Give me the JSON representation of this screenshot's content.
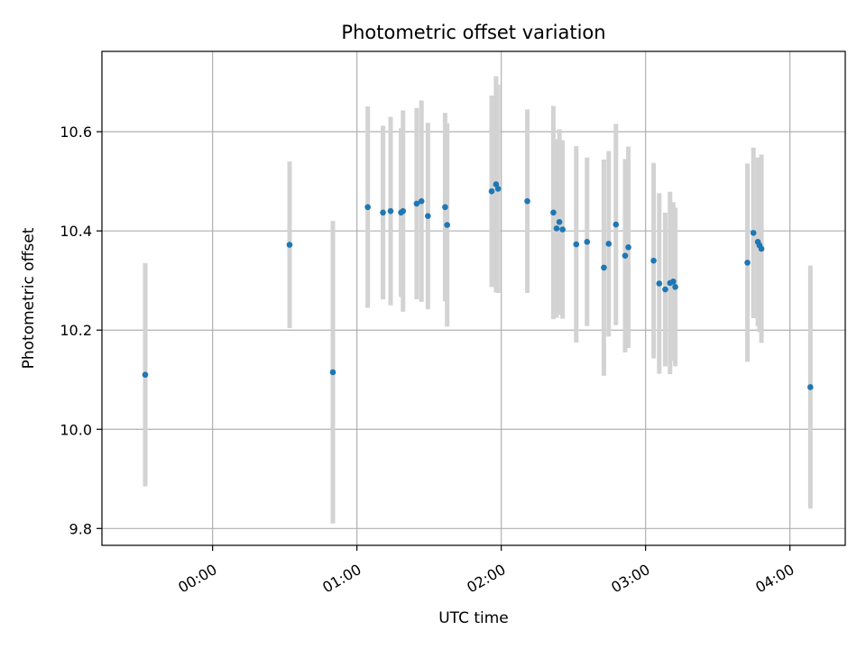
{
  "chart_data": {
    "type": "scatter",
    "title": "Photometric offset variation",
    "xlabel": "UTC time",
    "ylabel": "Photometric offset",
    "x_is_time": true,
    "xlim": [
      "23:14",
      "04:23"
    ],
    "ylim": [
      9.766,
      10.762
    ],
    "x_ticks": [
      "00:00",
      "01:00",
      "02:00",
      "03:00",
      "04:00"
    ],
    "y_ticks": [
      9.8,
      10.0,
      10.2,
      10.4,
      10.6
    ],
    "grid": true,
    "colors": {
      "point": "#1f77b4",
      "error_bar": "#d3d3d3",
      "grid": "#b0b0b0"
    },
    "series": [
      {
        "points": [
          {
            "x": "23:32:00",
            "y": 10.11,
            "err": 0.225
          },
          {
            "x": "00:32:00",
            "y": 10.372,
            "err": 0.168
          },
          {
            "x": "00:50:00",
            "y": 10.115,
            "err": 0.305
          },
          {
            "x": "01:04:30",
            "y": 10.448,
            "err": 0.203
          },
          {
            "x": "01:10:50",
            "y": 10.437,
            "err": 0.175
          },
          {
            "x": "01:14:00",
            "y": 10.44,
            "err": 0.19
          },
          {
            "x": "01:18:20",
            "y": 10.437,
            "err": 0.17
          },
          {
            "x": "01:19:10",
            "y": 10.44,
            "err": 0.203
          },
          {
            "x": "01:24:50",
            "y": 10.455,
            "err": 0.193
          },
          {
            "x": "01:26:50",
            "y": 10.46,
            "err": 0.203
          },
          {
            "x": "01:29:30",
            "y": 10.43,
            "err": 0.188
          },
          {
            "x": "01:36:40",
            "y": 10.448,
            "err": 0.19
          },
          {
            "x": "01:37:30",
            "y": 10.412,
            "err": 0.205
          },
          {
            "x": "01:56:00",
            "y": 10.48,
            "err": 0.193
          },
          {
            "x": "01:57:50",
            "y": 10.494,
            "err": 0.218
          },
          {
            "x": "01:58:40",
            "y": 10.485,
            "err": 0.21
          },
          {
            "x": "02:10:50",
            "y": 10.46,
            "err": 0.185
          },
          {
            "x": "02:21:40",
            "y": 10.437,
            "err": 0.215
          },
          {
            "x": "02:23:00",
            "y": 10.405,
            "err": 0.18
          },
          {
            "x": "02:24:10",
            "y": 10.418,
            "err": 0.187
          },
          {
            "x": "02:25:30",
            "y": 10.403,
            "err": 0.18
          },
          {
            "x": "02:31:10",
            "y": 10.373,
            "err": 0.198
          },
          {
            "x": "02:35:40",
            "y": 10.378,
            "err": 0.17
          },
          {
            "x": "02:42:40",
            "y": 10.326,
            "err": 0.218
          },
          {
            "x": "02:44:40",
            "y": 10.374,
            "err": 0.187
          },
          {
            "x": "02:47:40",
            "y": 10.413,
            "err": 0.203
          },
          {
            "x": "02:51:30",
            "y": 10.35,
            "err": 0.195
          },
          {
            "x": "02:52:50",
            "y": 10.367,
            "err": 0.203
          },
          {
            "x": "03:03:20",
            "y": 10.34,
            "err": 0.197
          },
          {
            "x": "03:05:40",
            "y": 10.294,
            "err": 0.182
          },
          {
            "x": "03:08:10",
            "y": 10.282,
            "err": 0.155
          },
          {
            "x": "03:10:10",
            "y": 10.295,
            "err": 0.184
          },
          {
            "x": "03:11:30",
            "y": 10.298,
            "err": 0.16
          },
          {
            "x": "03:12:20",
            "y": 10.287,
            "err": 0.16
          },
          {
            "x": "03:42:20",
            "y": 10.336,
            "err": 0.2
          },
          {
            "x": "03:44:50",
            "y": 10.396,
            "err": 0.172
          },
          {
            "x": "03:46:40",
            "y": 10.378,
            "err": 0.17
          },
          {
            "x": "03:47:20",
            "y": 10.371,
            "err": 0.175
          },
          {
            "x": "03:48:10",
            "y": 10.364,
            "err": 0.19
          },
          {
            "x": "04:08:30",
            "y": 10.085,
            "err": 0.245
          }
        ]
      }
    ]
  }
}
